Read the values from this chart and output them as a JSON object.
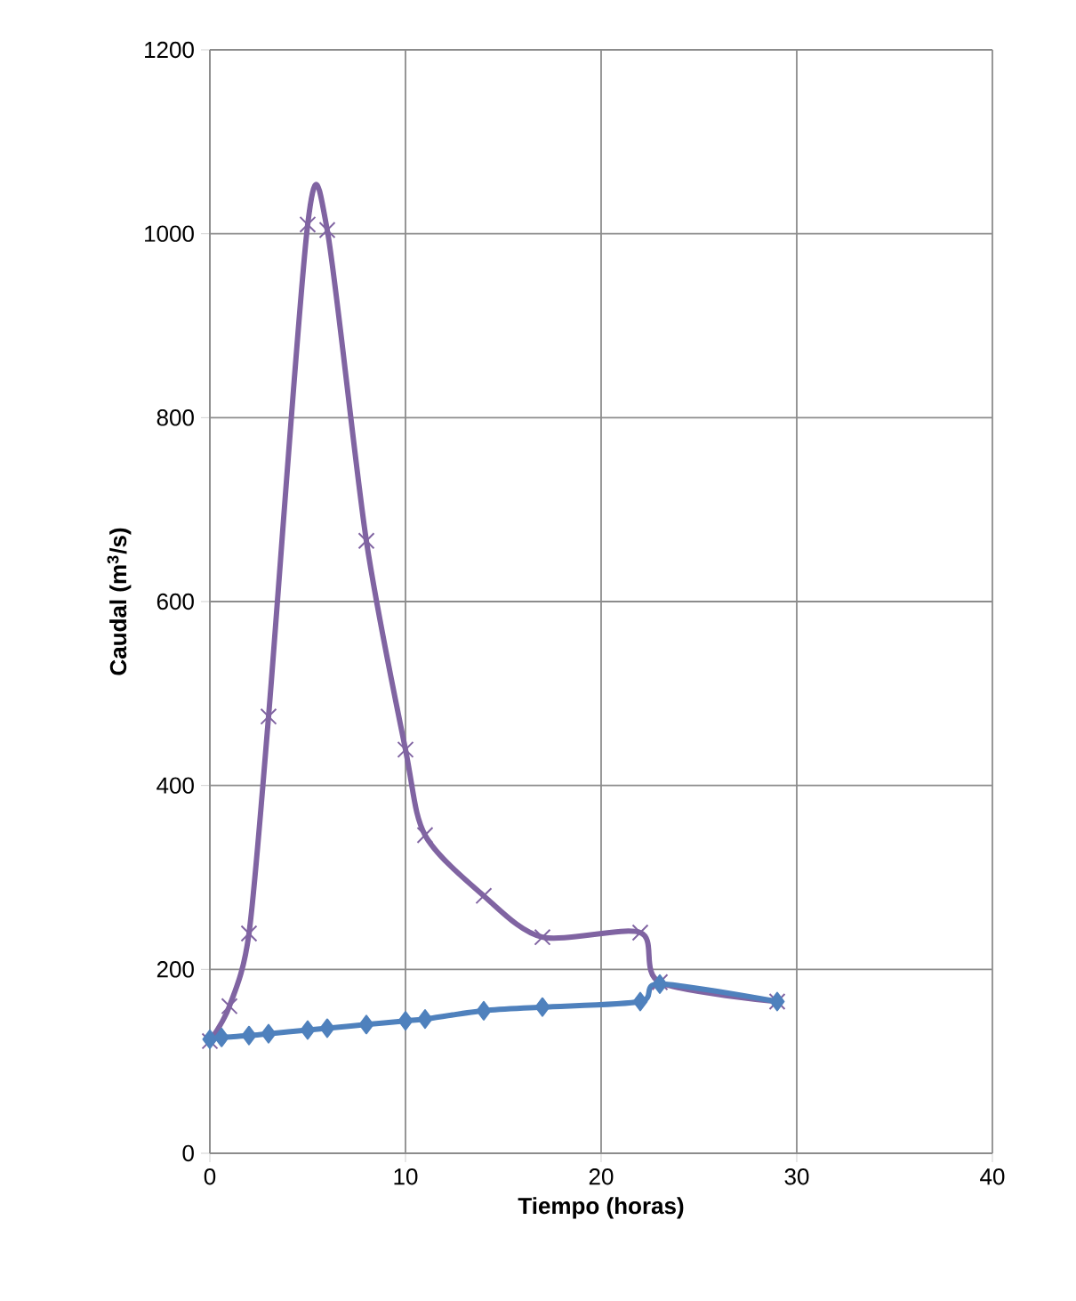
{
  "chart_data": {
    "type": "line",
    "xlabel": "Tiempo (horas)",
    "ylabel": "Caudal (m$^{3}$/s)",
    "xlim": [
      0,
      40
    ],
    "xticks": [
      0,
      10,
      20,
      30,
      40
    ],
    "ylim": [
      0,
      1200
    ],
    "yticks": [
      0,
      200,
      400,
      600,
      800,
      1000,
      1200
    ],
    "grid": true,
    "line_style": "solid",
    "series": [
      {
        "color": "#8064a2",
        "marker": "cross",
        "x": [
          0,
          1,
          2,
          3,
          5,
          6,
          8,
          10,
          11,
          14,
          17,
          22,
          23,
          29
        ],
        "values": [
          122,
          160,
          239,
          475,
          1010,
          1004,
          666,
          439,
          346,
          280,
          235,
          240,
          186,
          165
        ]
      },
      {
        "color": "#4f81bd",
        "marker": "diamond",
        "x": [
          0,
          0.6,
          2,
          3,
          5,
          6,
          8,
          10,
          11,
          14,
          17,
          22,
          23,
          29
        ],
        "values": [
          124,
          126,
          128,
          130,
          134,
          136,
          140,
          144,
          146,
          155,
          159,
          165,
          184,
          165
        ]
      }
    ]
  }
}
